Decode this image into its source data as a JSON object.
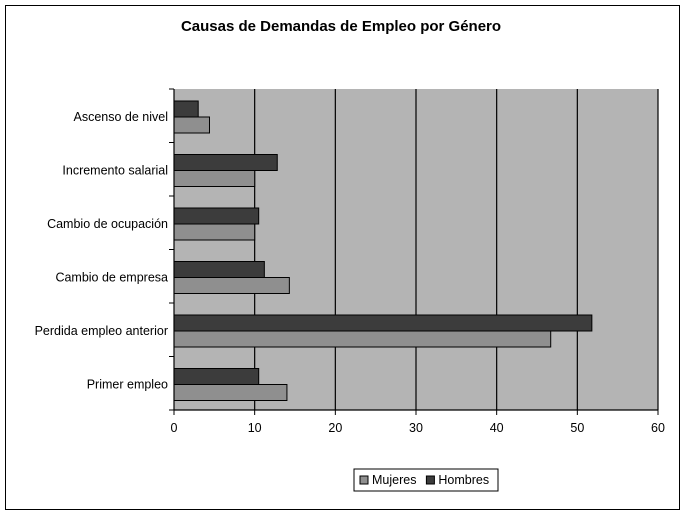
{
  "chart_data": {
    "type": "bar",
    "orientation": "horizontal",
    "title": "Causas de Demandas de Empleo por Género",
    "categories": [
      "Ascenso de nivel",
      "Incremento salarial",
      "Cambio de ocupación",
      "Cambio de empresa",
      "Perdida empleo anterior",
      "Primer empleo"
    ],
    "series": [
      {
        "name": "Hombres",
        "color": "#3c3c3c",
        "values": [
          3,
          12.8,
          10.5,
          11.2,
          51.8,
          10.5
        ]
      },
      {
        "name": "Mujeres",
        "color": "#8f8f8f",
        "values": [
          4.4,
          10,
          10,
          14.3,
          46.7,
          14
        ]
      }
    ],
    "xlim": [
      0,
      60
    ],
    "xticks": [
      "0",
      "10",
      "20",
      "30",
      "40",
      "50",
      "60"
    ],
    "grid": true,
    "plot_background": "#b4b4b4",
    "legend_position": "bottom",
    "legend": [
      "Mujeres",
      "Hombres"
    ]
  }
}
